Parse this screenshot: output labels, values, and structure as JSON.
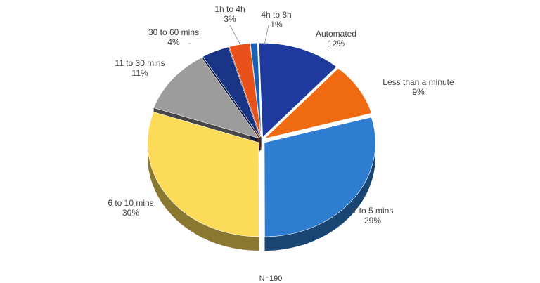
{
  "chart_data": {
    "type": "pie",
    "title": "",
    "legend": "none",
    "slices": [
      {
        "label": "Automated",
        "value_label": "12%",
        "value": 12,
        "color": "#1F3A9E"
      },
      {
        "label": "Less than a minute",
        "value_label": "9%",
        "value": 9,
        "color": "#F06A12"
      },
      {
        "label": "1 to 5 mins",
        "value_label": "29%",
        "value": 29,
        "color": "#2E7DD1"
      },
      {
        "label": "6 to 10 mins",
        "value_label": "30%",
        "value": 30,
        "color": "#FBDB58"
      },
      {
        "label": "11 to 30 mins",
        "value_label": "11%",
        "value": 11,
        "color": "#9C9C9C"
      },
      {
        "label": "30 to 60 mins",
        "value_label": "4%",
        "value": 4,
        "color": "#1A3585"
      },
      {
        "label": "1h to 4h",
        "value_label": "3%",
        "value": 3,
        "color": "#E8521A"
      },
      {
        "label": "4h to 8h",
        "value_label": "1%",
        "value": 1,
        "color": "#1B5FB4"
      }
    ],
    "note": "N=190"
  }
}
